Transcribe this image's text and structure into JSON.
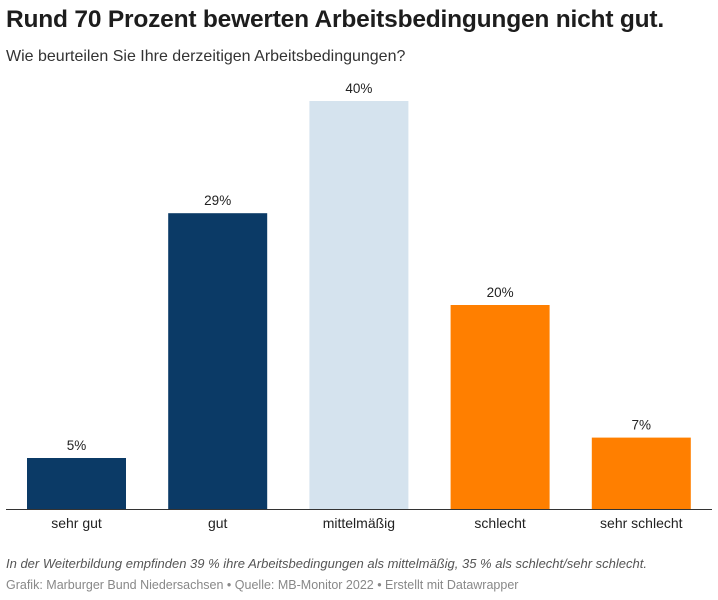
{
  "title": "Rund 70 Prozent bewerten Arbeitsbedingungen nicht gut.",
  "subtitle": "Wie beurteilen Sie Ihre derzeitigen Arbeitsbedingungen?",
  "note": "In der Weiterbildung empfinden 39 % ihre Arbeitsbedingungen als mittelmäßig, 35 % als schlecht/sehr schlecht.",
  "source": "Grafik: Marburger Bund Niedersachsen • Quelle: MB-Monitor 2022 • Erstellt mit Datawrapper",
  "chart_data": {
    "type": "bar",
    "categories": [
      "sehr gut",
      "gut",
      "mittelmäßig",
      "schlecht",
      "sehr schlecht"
    ],
    "values": [
      5,
      29,
      40,
      20,
      7
    ],
    "labels": [
      "5%",
      "29%",
      "40%",
      "20%",
      "7%"
    ],
    "colors": [
      "#0b3a66",
      "#0b3a66",
      "#d5e3ee",
      "#ff7f00",
      "#ff7f00"
    ],
    "ylim": [
      0,
      40
    ],
    "grid": false
  }
}
